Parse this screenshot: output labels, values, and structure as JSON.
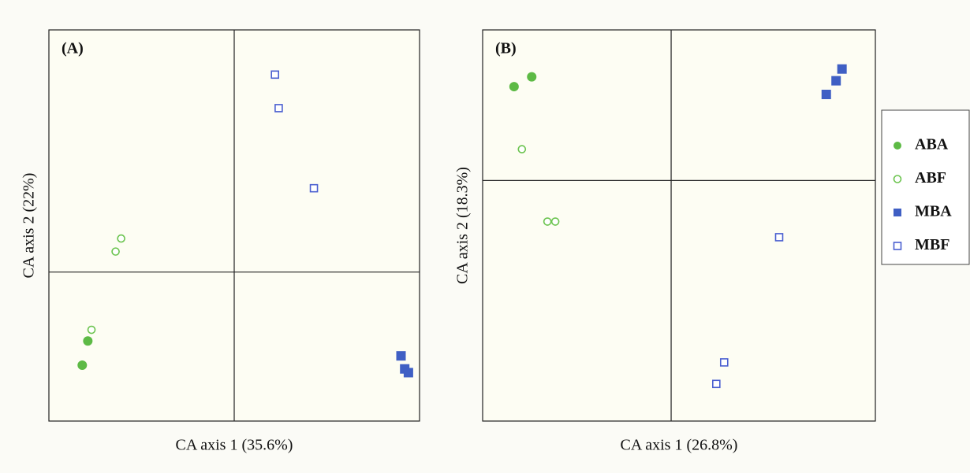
{
  "chart_data": [
    {
      "type": "scatter",
      "panel_label": "(A)",
      "x_label": "CA axis 1 (35.6%)",
      "y_label": "CA axis 2 (22%)",
      "xlim": [
        -1,
        1
      ],
      "ylim": [
        -0.8,
        1.3
      ],
      "origin_lines": true,
      "series": [
        {
          "name": "ABA",
          "color": "#5dba45",
          "marker": "circle",
          "filled": true,
          "x": [
            -0.79,
            -0.82
          ],
          "y": [
            -0.37,
            -0.5
          ]
        },
        {
          "name": "ABF",
          "color": "#6cc44f",
          "marker": "circle",
          "filled": false,
          "x": [
            -0.77,
            -0.61,
            -0.64
          ],
          "y": [
            -0.31,
            0.18,
            0.11
          ]
        },
        {
          "name": "MBA",
          "color": "#3f5fc4",
          "marker": "square",
          "filled": true,
          "x": [
            0.9,
            0.92,
            0.94
          ],
          "y": [
            -0.45,
            -0.52,
            -0.54
          ]
        },
        {
          "name": "MBF",
          "color": "#4a5fd0",
          "marker": "square",
          "filled": false,
          "x": [
            0.22,
            0.24,
            0.43
          ],
          "y": [
            1.06,
            0.88,
            0.45
          ]
        }
      ]
    },
    {
      "type": "scatter",
      "panel_label": "(B)",
      "x_label": "CA axis 1 (26.8%)",
      "y_label": "CA axis 2 (18.3%)",
      "xlim": [
        -0.96,
        1.04
      ],
      "ylim": [
        -1.23,
        0.77
      ],
      "origin_lines": true,
      "series": [
        {
          "color": "#5dba45",
          "marker": "circle",
          "filled": true,
          "x": [
            -0.8,
            -0.71
          ],
          "y": [
            0.48,
            0.53
          ]
        },
        {
          "color": "#6cc44f",
          "marker": "circle",
          "filled": false,
          "x": [
            -0.76,
            -0.63,
            -0.59
          ],
          "y": [
            0.16,
            -0.21,
            -0.21
          ]
        },
        {
          "color": "#3f5fc4",
          "marker": "square",
          "filled": true,
          "x": [
            0.79,
            0.84,
            0.87
          ],
          "y": [
            0.44,
            0.51,
            0.57
          ]
        },
        {
          "color": "#4a5fd0",
          "marker": "square",
          "filled": false,
          "x": [
            0.55,
            0.27,
            0.23
          ],
          "y": [
            -0.29,
            -0.93,
            -1.04
          ]
        }
      ]
    }
  ]
}
